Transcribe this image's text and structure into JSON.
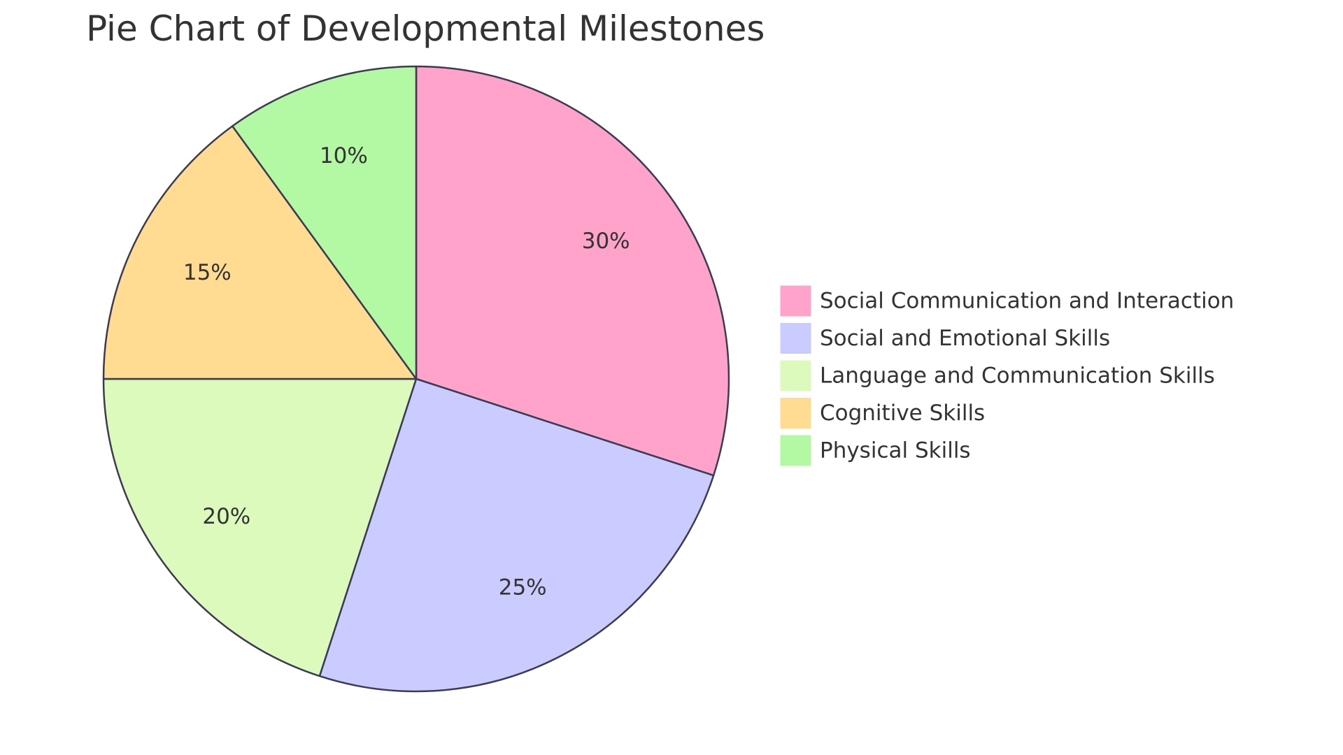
{
  "chart_data": {
    "type": "pie",
    "title": "Pie Chart of Developmental Milestones",
    "slices": [
      {
        "label": "Social Communication and Interaction",
        "value": 30,
        "display": "30%",
        "color": "#FFA3CB"
      },
      {
        "label": "Social and Emotional Skills",
        "value": 25,
        "display": "25%",
        "color": "#CACBFF"
      },
      {
        "label": "Language and Communication Skills",
        "value": 20,
        "display": "20%",
        "color": "#DBFABB"
      },
      {
        "label": "Cognitive Skills",
        "value": 15,
        "display": "15%",
        "color": "#FFDC92"
      },
      {
        "label": "Physical Skills",
        "value": 10,
        "display": "10%",
        "color": "#B3F8A3"
      }
    ],
    "legend_position": "right",
    "start_angle": "top",
    "direction": "clockwise"
  },
  "colors": {
    "title_text": "#333333",
    "slice_border": "#3b3b52",
    "label_text": "#333333",
    "background": "#ffffff"
  }
}
